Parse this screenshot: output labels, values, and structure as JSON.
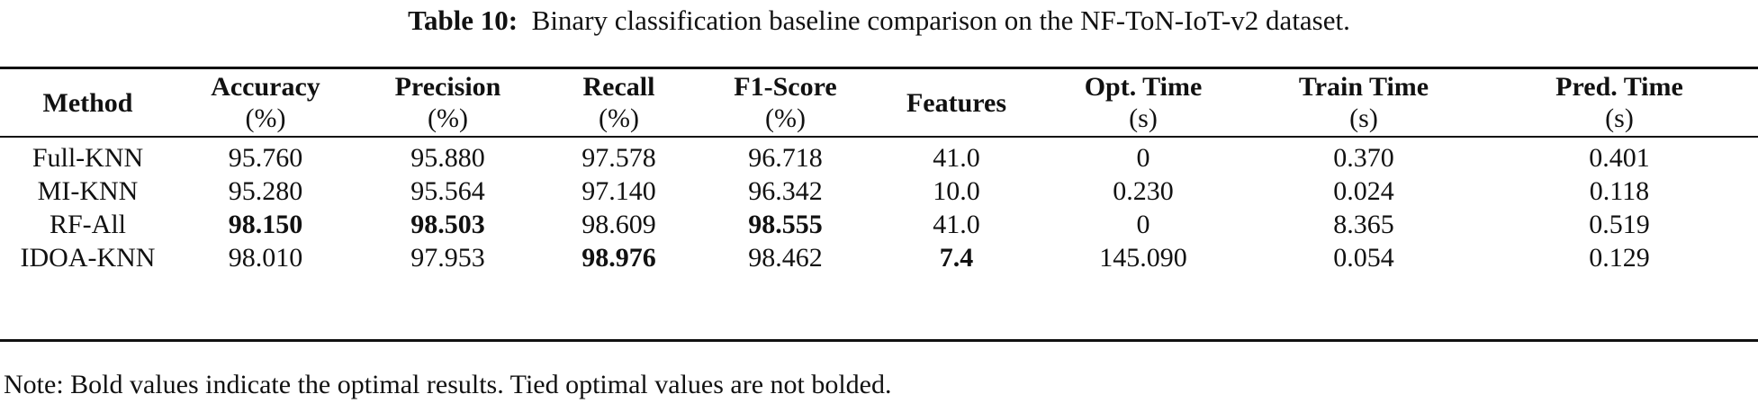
{
  "caption": {
    "label": "Table 10:",
    "text": "Binary classification baseline comparison on the NF-ToN-IoT-v2 dataset."
  },
  "table": {
    "columns": [
      {
        "name": "Method",
        "unit": ""
      },
      {
        "name": "Accuracy",
        "unit": "(%)"
      },
      {
        "name": "Precision",
        "unit": "(%)"
      },
      {
        "name": "Recall",
        "unit": "(%)"
      },
      {
        "name": "F1-Score",
        "unit": "(%)"
      },
      {
        "name": "Features",
        "unit": ""
      },
      {
        "name": "Opt. Time",
        "unit": "(s)"
      },
      {
        "name": "Train Time",
        "unit": "(s)"
      },
      {
        "name": "Pred. Time",
        "unit": "(s)"
      }
    ],
    "rows": [
      {
        "cells": [
          "Full-KNN",
          "95.760",
          "95.880",
          "97.578",
          "96.718",
          "41.0",
          "0",
          "0.370",
          "0.401"
        ],
        "bold": [
          false,
          false,
          false,
          false,
          false,
          false,
          false,
          false,
          false
        ]
      },
      {
        "cells": [
          "MI-KNN",
          "95.280",
          "95.564",
          "97.140",
          "96.342",
          "10.0",
          "0.230",
          "0.024",
          "0.118"
        ],
        "bold": [
          false,
          false,
          false,
          false,
          false,
          false,
          false,
          false,
          false
        ]
      },
      {
        "cells": [
          "RF-All",
          "98.150",
          "98.503",
          "98.609",
          "98.555",
          "41.0",
          "0",
          "8.365",
          "0.519"
        ],
        "bold": [
          false,
          true,
          true,
          false,
          true,
          false,
          false,
          false,
          false
        ]
      },
      {
        "cells": [
          "IDOA-KNN",
          "98.010",
          "97.953",
          "98.976",
          "98.462",
          "7.4",
          "145.090",
          "0.054",
          "0.129"
        ],
        "bold": [
          false,
          false,
          false,
          true,
          false,
          true,
          false,
          false,
          false
        ]
      }
    ]
  },
  "note": "Note: Bold values indicate the optimal results. Tied optimal values are not bolded."
}
